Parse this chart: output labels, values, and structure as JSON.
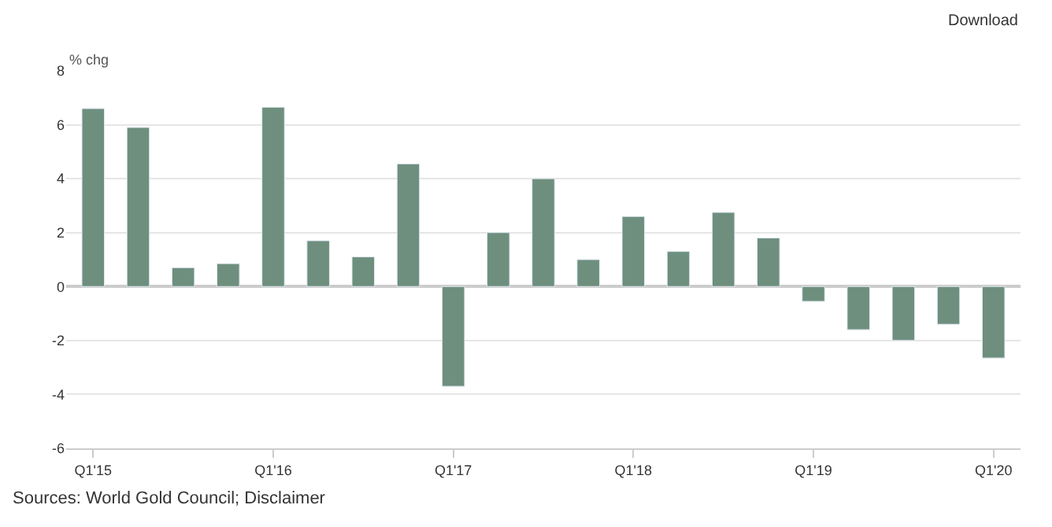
{
  "chart_data": {
    "type": "bar",
    "ylabel": "% chg",
    "categories": [
      "Q1'15",
      null,
      null,
      null,
      "Q1'16",
      null,
      null,
      null,
      "Q1'17",
      null,
      null,
      null,
      "Q1'18",
      null,
      null,
      null,
      "Q1'19",
      null,
      null,
      null,
      "Q1'20"
    ],
    "values": [
      6.6,
      5.9,
      0.7,
      0.85,
      6.65,
      1.7,
      1.1,
      4.55,
      -3.7,
      2.0,
      4.0,
      1.0,
      2.6,
      1.3,
      2.75,
      1.8,
      -0.55,
      -1.6,
      -2.0,
      -1.4,
      -2.65
    ],
    "color": "#6e8f7e",
    "ylim": [
      -6,
      8
    ],
    "yticks": [
      -6,
      -4,
      -2,
      0,
      2,
      4,
      6,
      8
    ],
    "grid": "y",
    "annotations": [
      "Sources: World Gold Council; Disclaimer",
      "Download"
    ]
  }
}
